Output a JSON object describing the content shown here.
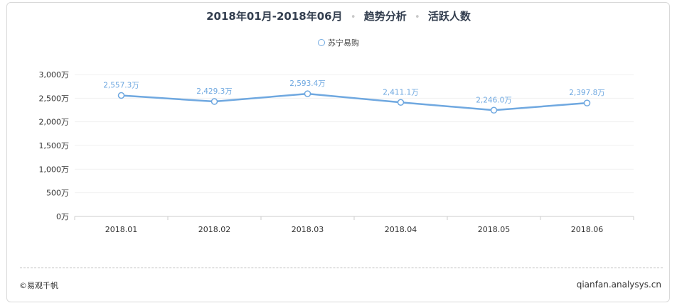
{
  "header": {
    "period": "2018年01月-2018年06月",
    "sep": "•",
    "analysis": "趋势分析",
    "metric": "活跃人数"
  },
  "legend": {
    "label": "苏宁易购"
  },
  "footer": {
    "copyright": "©易观千帆",
    "site": "qianfan.analysys.cn"
  },
  "chart_data": {
    "type": "line",
    "title": "2018年01月-2018年06月 • 趋势分析 • 活跃人数",
    "categories": [
      "2018.01",
      "2018.02",
      "2018.03",
      "2018.04",
      "2018.05",
      "2018.06"
    ],
    "series": [
      {
        "name": "苏宁易购",
        "values": [
          2557.3,
          2429.3,
          2593.4,
          2411.1,
          2246.0,
          2397.8
        ],
        "labels": [
          "2,557.3万",
          "2,429.3万",
          "2,593.4万",
          "2,411.1万",
          "2,246.0万",
          "2,397.8万"
        ],
        "color": "#6fa8e0"
      }
    ],
    "yticks": [
      0,
      500,
      1000,
      1500,
      2000,
      2500,
      3000
    ],
    "ytick_labels": [
      "0万",
      "500万",
      "1,000万",
      "1,500万",
      "2,000万",
      "2,500万",
      "3,000万"
    ],
    "ylim": [
      0,
      3000
    ],
    "grid": true,
    "legend_position": "top-center"
  }
}
